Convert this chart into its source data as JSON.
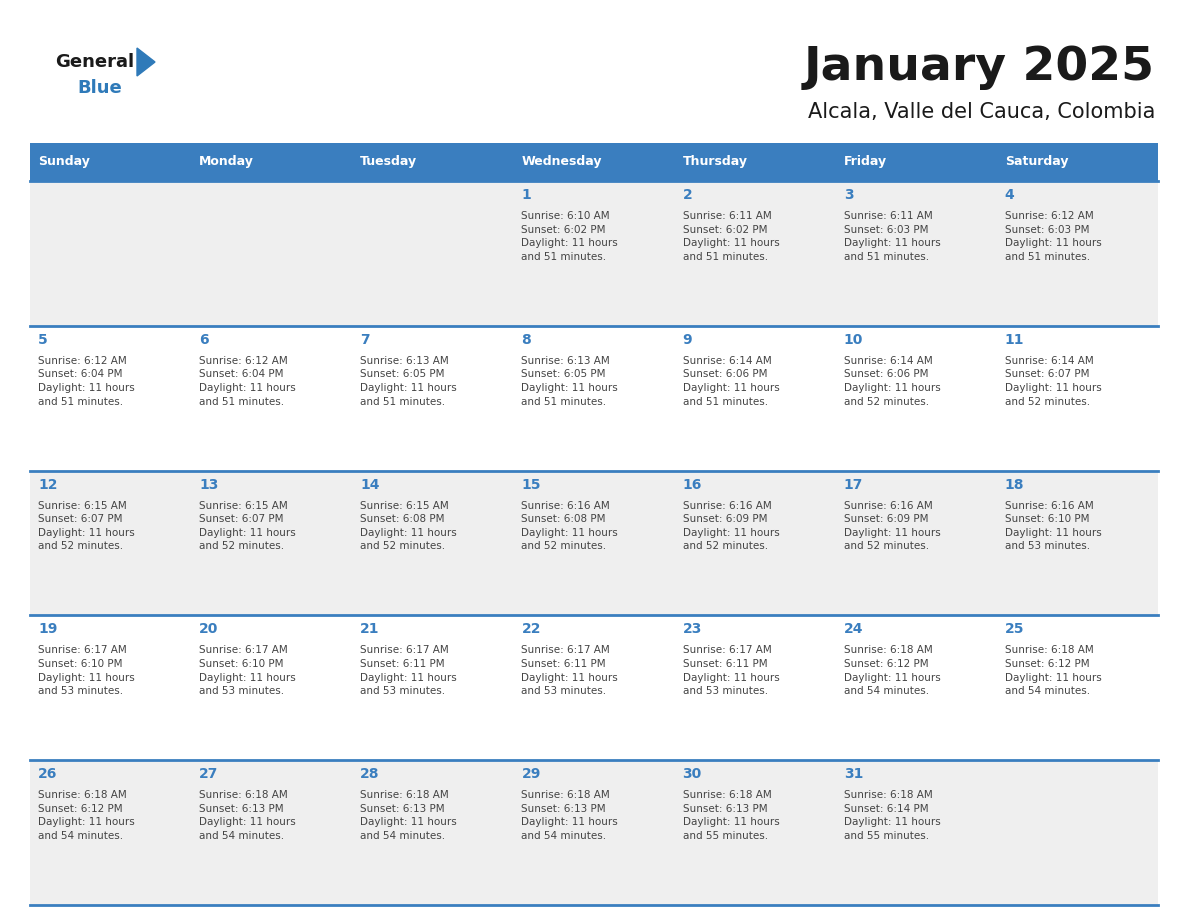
{
  "title": "January 2025",
  "subtitle": "Alcala, Valle del Cauca, Colombia",
  "header_bg_color": "#3a7ebf",
  "header_text_color": "#ffffff",
  "cell_bg_even": "#efefef",
  "cell_bg_odd": "#ffffff",
  "day_num_color": "#3a7ebf",
  "text_color": "#444444",
  "border_color": "#3a7ebf",
  "days_of_week": [
    "Sunday",
    "Monday",
    "Tuesday",
    "Wednesday",
    "Thursday",
    "Friday",
    "Saturday"
  ],
  "weeks": [
    [
      {
        "day": 0,
        "info": ""
      },
      {
        "day": 0,
        "info": ""
      },
      {
        "day": 0,
        "info": ""
      },
      {
        "day": 1,
        "info": "Sunrise: 6:10 AM\nSunset: 6:02 PM\nDaylight: 11 hours\nand 51 minutes."
      },
      {
        "day": 2,
        "info": "Sunrise: 6:11 AM\nSunset: 6:02 PM\nDaylight: 11 hours\nand 51 minutes."
      },
      {
        "day": 3,
        "info": "Sunrise: 6:11 AM\nSunset: 6:03 PM\nDaylight: 11 hours\nand 51 minutes."
      },
      {
        "day": 4,
        "info": "Sunrise: 6:12 AM\nSunset: 6:03 PM\nDaylight: 11 hours\nand 51 minutes."
      }
    ],
    [
      {
        "day": 5,
        "info": "Sunrise: 6:12 AM\nSunset: 6:04 PM\nDaylight: 11 hours\nand 51 minutes."
      },
      {
        "day": 6,
        "info": "Sunrise: 6:12 AM\nSunset: 6:04 PM\nDaylight: 11 hours\nand 51 minutes."
      },
      {
        "day": 7,
        "info": "Sunrise: 6:13 AM\nSunset: 6:05 PM\nDaylight: 11 hours\nand 51 minutes."
      },
      {
        "day": 8,
        "info": "Sunrise: 6:13 AM\nSunset: 6:05 PM\nDaylight: 11 hours\nand 51 minutes."
      },
      {
        "day": 9,
        "info": "Sunrise: 6:14 AM\nSunset: 6:06 PM\nDaylight: 11 hours\nand 51 minutes."
      },
      {
        "day": 10,
        "info": "Sunrise: 6:14 AM\nSunset: 6:06 PM\nDaylight: 11 hours\nand 52 minutes."
      },
      {
        "day": 11,
        "info": "Sunrise: 6:14 AM\nSunset: 6:07 PM\nDaylight: 11 hours\nand 52 minutes."
      }
    ],
    [
      {
        "day": 12,
        "info": "Sunrise: 6:15 AM\nSunset: 6:07 PM\nDaylight: 11 hours\nand 52 minutes."
      },
      {
        "day": 13,
        "info": "Sunrise: 6:15 AM\nSunset: 6:07 PM\nDaylight: 11 hours\nand 52 minutes."
      },
      {
        "day": 14,
        "info": "Sunrise: 6:15 AM\nSunset: 6:08 PM\nDaylight: 11 hours\nand 52 minutes."
      },
      {
        "day": 15,
        "info": "Sunrise: 6:16 AM\nSunset: 6:08 PM\nDaylight: 11 hours\nand 52 minutes."
      },
      {
        "day": 16,
        "info": "Sunrise: 6:16 AM\nSunset: 6:09 PM\nDaylight: 11 hours\nand 52 minutes."
      },
      {
        "day": 17,
        "info": "Sunrise: 6:16 AM\nSunset: 6:09 PM\nDaylight: 11 hours\nand 52 minutes."
      },
      {
        "day": 18,
        "info": "Sunrise: 6:16 AM\nSunset: 6:10 PM\nDaylight: 11 hours\nand 53 minutes."
      }
    ],
    [
      {
        "day": 19,
        "info": "Sunrise: 6:17 AM\nSunset: 6:10 PM\nDaylight: 11 hours\nand 53 minutes."
      },
      {
        "day": 20,
        "info": "Sunrise: 6:17 AM\nSunset: 6:10 PM\nDaylight: 11 hours\nand 53 minutes."
      },
      {
        "day": 21,
        "info": "Sunrise: 6:17 AM\nSunset: 6:11 PM\nDaylight: 11 hours\nand 53 minutes."
      },
      {
        "day": 22,
        "info": "Sunrise: 6:17 AM\nSunset: 6:11 PM\nDaylight: 11 hours\nand 53 minutes."
      },
      {
        "day": 23,
        "info": "Sunrise: 6:17 AM\nSunset: 6:11 PM\nDaylight: 11 hours\nand 53 minutes."
      },
      {
        "day": 24,
        "info": "Sunrise: 6:18 AM\nSunset: 6:12 PM\nDaylight: 11 hours\nand 54 minutes."
      },
      {
        "day": 25,
        "info": "Sunrise: 6:18 AM\nSunset: 6:12 PM\nDaylight: 11 hours\nand 54 minutes."
      }
    ],
    [
      {
        "day": 26,
        "info": "Sunrise: 6:18 AM\nSunset: 6:12 PM\nDaylight: 11 hours\nand 54 minutes."
      },
      {
        "day": 27,
        "info": "Sunrise: 6:18 AM\nSunset: 6:13 PM\nDaylight: 11 hours\nand 54 minutes."
      },
      {
        "day": 28,
        "info": "Sunrise: 6:18 AM\nSunset: 6:13 PM\nDaylight: 11 hours\nand 54 minutes."
      },
      {
        "day": 29,
        "info": "Sunrise: 6:18 AM\nSunset: 6:13 PM\nDaylight: 11 hours\nand 54 minutes."
      },
      {
        "day": 30,
        "info": "Sunrise: 6:18 AM\nSunset: 6:13 PM\nDaylight: 11 hours\nand 55 minutes."
      },
      {
        "day": 31,
        "info": "Sunrise: 6:18 AM\nSunset: 6:14 PM\nDaylight: 11 hours\nand 55 minutes."
      },
      {
        "day": 0,
        "info": ""
      }
    ]
  ]
}
